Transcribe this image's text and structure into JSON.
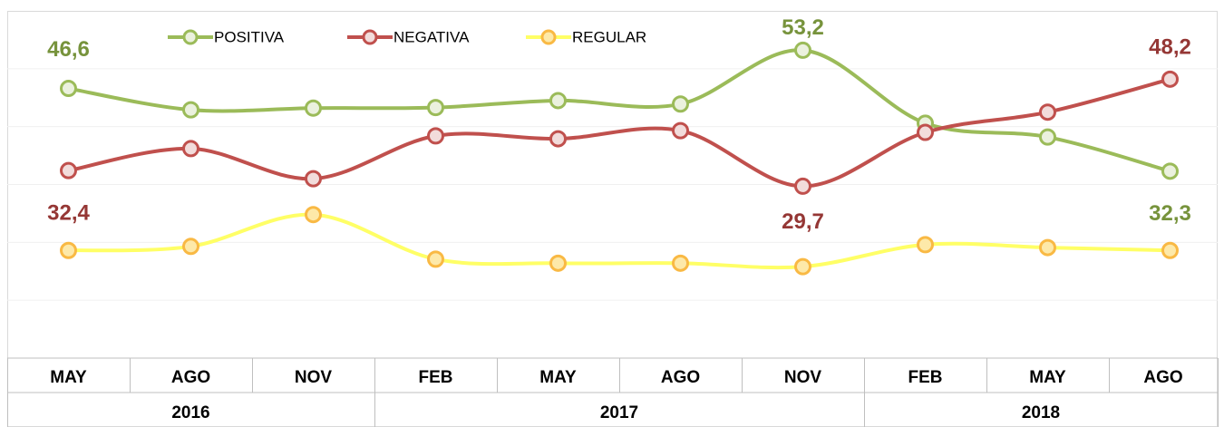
{
  "chart_data": {
    "type": "line",
    "categories": [
      "MAY",
      "AGO",
      "NOV",
      "FEB",
      "MAY",
      "AGO",
      "NOV",
      "FEB",
      "MAY",
      "AGO"
    ],
    "groups": [
      {
        "label": "2016",
        "span": 3
      },
      {
        "label": "2017",
        "span": 4
      },
      {
        "label": "2018",
        "span": 3
      }
    ],
    "series": [
      {
        "name": "POSITIVA",
        "color": "#9bbb59",
        "marker_fill": "#ebf1de",
        "marker_stroke": "#9bbb59",
        "label_color": "#77933c",
        "values": [
          46.6,
          42.9,
          43.2,
          43.3,
          44.5,
          43.9,
          53.2,
          40.6,
          38.2,
          32.3
        ],
        "value_labels": [
          "46,6",
          null,
          null,
          null,
          null,
          null,
          "53,2",
          null,
          null,
          "32,3"
        ]
      },
      {
        "name": "NEGATIVA",
        "color": "#c0504d",
        "marker_fill": "#f2dcdb",
        "marker_stroke": "#c0504d",
        "label_color": "#953735",
        "values": [
          32.4,
          36.2,
          31.0,
          38.4,
          37.9,
          39.3,
          29.7,
          39.0,
          42.5,
          48.2
        ],
        "value_labels": [
          "32,4",
          null,
          null,
          null,
          null,
          null,
          "29,7",
          null,
          null,
          "48,2"
        ]
      },
      {
        "name": "REGULAR",
        "color": "#ffff66",
        "marker_fill": "#fde9a9",
        "marker_stroke": "#f9b944",
        "label_color": "#953735",
        "values": [
          18.6,
          19.3,
          24.8,
          17.1,
          16.4,
          16.4,
          15.8,
          19.6,
          19.1,
          18.6
        ]
      }
    ],
    "ylim": [
      0,
      60
    ],
    "yticks": [
      0,
      10,
      20,
      30,
      40,
      50,
      60
    ],
    "grid": true,
    "legend": "top"
  }
}
